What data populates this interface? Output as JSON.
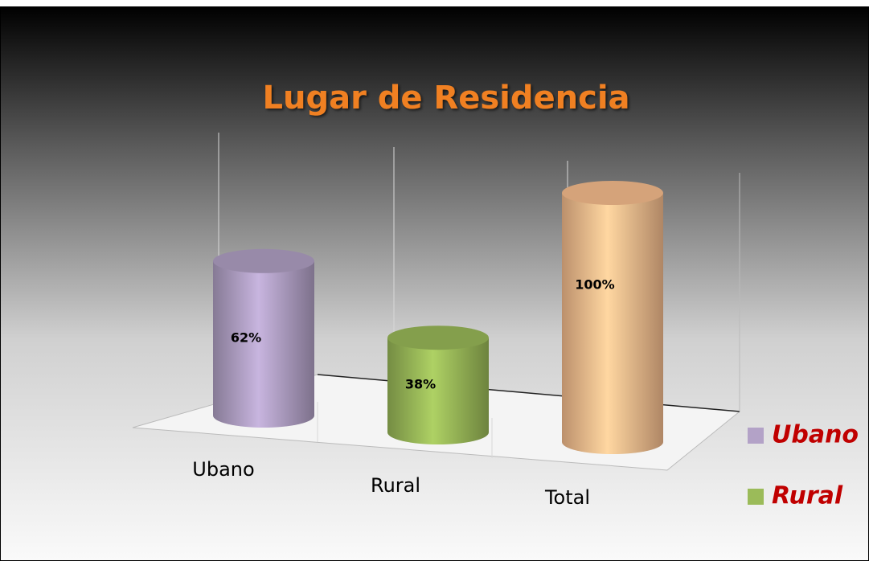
{
  "chart_data": {
    "type": "cylinder-bar",
    "title": "Lugar de Residencia",
    "categories": [
      "Ubano",
      "Rural",
      "Total"
    ],
    "values": [
      62,
      38,
      100
    ],
    "value_labels": [
      "62%",
      "38%",
      "100%"
    ],
    "colors": [
      "#b3a2c7",
      "#9bbb59",
      "#fac090"
    ],
    "legend": [
      {
        "name": "Ubano",
        "color": "#b3a2c7"
      },
      {
        "name": "Rural",
        "color": "#9bbb59"
      }
    ]
  }
}
